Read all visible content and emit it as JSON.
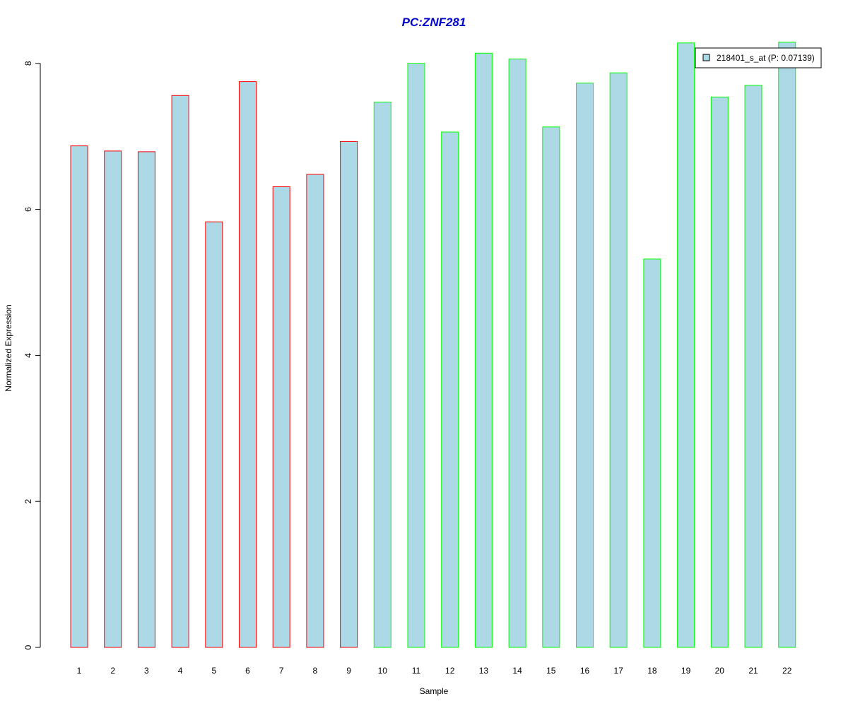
{
  "chart_data": {
    "type": "bar",
    "title": "PC:ZNF281",
    "xlabel": "Sample",
    "ylabel": "Normalized Expression",
    "categories": [
      "1",
      "2",
      "3",
      "4",
      "5",
      "6",
      "7",
      "8",
      "9",
      "10",
      "11",
      "12",
      "13",
      "14",
      "15",
      "16",
      "17",
      "18",
      "19",
      "20",
      "21",
      "22"
    ],
    "series": [
      {
        "name": "218401_s_at (P: 0.07139)",
        "values": [
          6.87,
          6.8,
          6.79,
          7.56,
          5.83,
          7.75,
          6.31,
          6.48,
          6.93,
          7.47,
          8.0,
          7.06,
          8.14,
          8.06,
          7.13,
          7.73,
          7.87,
          5.32,
          8.28,
          7.54,
          7.7,
          8.29
        ]
      }
    ],
    "group_of_bar": [
      "A",
      "A",
      "A",
      "A",
      "A",
      "A",
      "A",
      "A",
      "A",
      "B",
      "B",
      "B",
      "B",
      "B",
      "B",
      "B",
      "B",
      "B",
      "B",
      "B",
      "B",
      "B"
    ],
    "yticks": [
      0,
      2,
      4,
      6,
      8
    ],
    "ylim": [
      0,
      8.29
    ],
    "grid": false,
    "legend_position": "top-right",
    "colors": {
      "title": "#0000cd",
      "bar_fill": "#add8e6",
      "border_group_a": "#ff0000",
      "border_group_b": "#00ff00",
      "axis": "#000000"
    }
  }
}
